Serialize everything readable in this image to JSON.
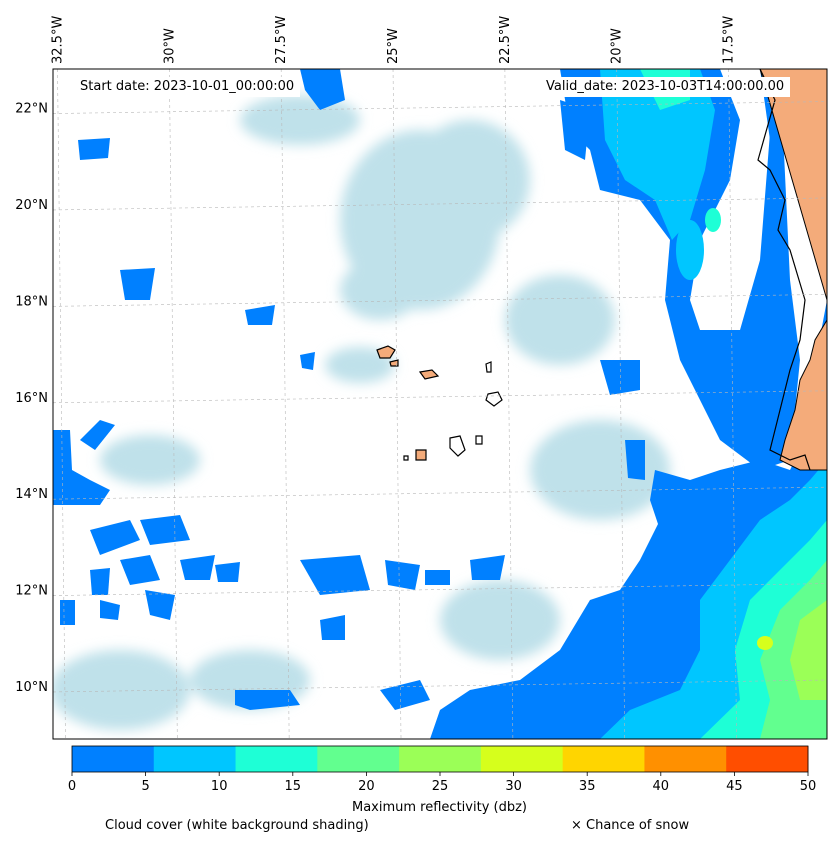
{
  "header": {
    "start_date": "Start date: 2023-10-01_00:00:00",
    "valid_date": "Valid_date: 2023-10-03T14:00:00.00"
  },
  "map": {
    "lon_labels": [
      "32.5°W",
      "30°W",
      "27.5°W",
      "25°W",
      "22.5°W",
      "20°W",
      "17.5°W"
    ],
    "lon_values": [
      -32.5,
      -30,
      -27.5,
      -25,
      -22.5,
      -20,
      -17.5
    ],
    "lat_labels": [
      "22°N",
      "20°N",
      "18°N",
      "16°N",
      "14°N",
      "12°N",
      "10°N"
    ],
    "lat_values": [
      22,
      20,
      18,
      16,
      14,
      12,
      10
    ],
    "lon_range": [
      -32.6,
      -15.3
    ],
    "lat_range": [
      8.9,
      22.8
    ],
    "land_color": "#f4ab7a",
    "cloud_color": "#bfe1ea",
    "grid": true
  },
  "colorbar": {
    "label": "Maximum reflectivity (dbz)",
    "ticks": [
      "0",
      "5",
      "10",
      "15",
      "20",
      "25",
      "30",
      "35",
      "40",
      "45",
      "50"
    ],
    "colors": [
      "#0080ff",
      "#00c6ff",
      "#1effd6",
      "#62ff8f",
      "#9bff57",
      "#d6ff1c",
      "#ffd500",
      "#ff9000",
      "#ff4e00"
    ]
  },
  "legend": {
    "cloud_note": "Cloud cover (white background shading)",
    "snow_note": "× Chance of snow"
  }
}
